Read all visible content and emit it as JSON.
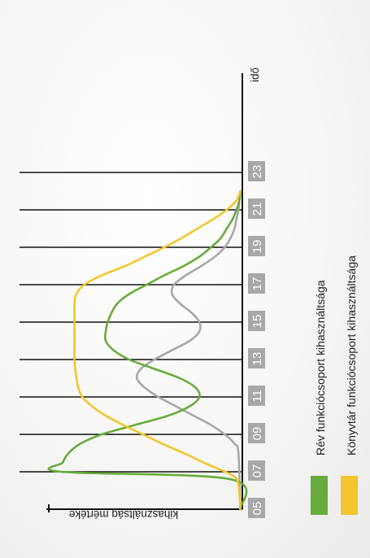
{
  "chart_data": {
    "type": "line",
    "orientation": "rotated-90-clockwise",
    "x_axis_label": "idő",
    "y_axis_label": "kihasználtság mértéke",
    "x_ticks": [
      "05",
      "07",
      "09",
      "11",
      "13",
      "15",
      "17",
      "19",
      "21",
      "23"
    ],
    "xlim": [
      5,
      23
    ],
    "ylim": [
      0,
      1
    ],
    "grid": "vertical lines at odd hours 07–23",
    "legend_position": "bottom",
    "series": [
      {
        "name": "Rév funkciócsoport kihasználtsága",
        "color": "#6aab3d",
        "x": [
          5,
          6.6,
          7,
          7.5,
          8,
          8.5,
          9,
          9.5,
          10,
          10.5,
          11,
          11.5,
          12,
          12.5,
          13,
          13.5,
          14,
          14.5,
          15,
          15.5,
          16,
          16.5,
          17,
          17.5,
          18,
          18.5,
          19,
          19.5,
          20,
          20.5,
          21,
          21.5,
          22
        ],
        "y": [
          0.01,
          0.06,
          0.93,
          0.92,
          0.89,
          0.83,
          0.72,
          0.55,
          0.38,
          0.27,
          0.22,
          0.24,
          0.32,
          0.45,
          0.58,
          0.66,
          0.7,
          0.7,
          0.69,
          0.67,
          0.64,
          0.58,
          0.49,
          0.4,
          0.3,
          0.22,
          0.16,
          0.11,
          0.08,
          0.05,
          0.03,
          0.015,
          0.01
        ]
      },
      {
        "name": "Könyvtár funkciócsoport kihasználtsága",
        "color": "#f2c62c",
        "x": [
          5,
          6.3,
          6.8,
          7.5,
          8,
          8.5,
          9,
          9.5,
          10,
          10.5,
          11,
          11.5,
          12,
          13,
          14,
          15,
          16,
          16.5,
          17,
          17.5,
          18,
          18.5,
          19,
          19.5,
          20,
          20.5,
          21,
          21.5,
          22
        ],
        "y": [
          0.01,
          0.02,
          0.05,
          0.2,
          0.3,
          0.41,
          0.51,
          0.61,
          0.7,
          0.77,
          0.82,
          0.84,
          0.85,
          0.86,
          0.86,
          0.86,
          0.86,
          0.85,
          0.81,
          0.72,
          0.6,
          0.5,
          0.4,
          0.31,
          0.23,
          0.15,
          0.08,
          0.03,
          0.01
        ]
      },
      {
        "name": "",
        "color": "#a8a8a8",
        "x": [
          5,
          8,
          8.5,
          9,
          9.5,
          10,
          10.5,
          11,
          11.5,
          12,
          12.5,
          13,
          13.5,
          14,
          14.5,
          15,
          15.5,
          16,
          16.5,
          17,
          17.5,
          18,
          18.5,
          19,
          19.5,
          20,
          20.5,
          21,
          21.5,
          22
        ],
        "y": [
          0.01,
          0.02,
          0.04,
          0.09,
          0.16,
          0.25,
          0.34,
          0.43,
          0.5,
          0.54,
          0.52,
          0.45,
          0.36,
          0.27,
          0.22,
          0.22,
          0.26,
          0.32,
          0.36,
          0.35,
          0.29,
          0.21,
          0.14,
          0.09,
          0.06,
          0.04,
          0.03,
          0.02,
          0.015,
          0.01
        ]
      }
    ]
  },
  "legend": [
    {
      "label": "Rév funkciócsoport kihasználtsága",
      "color": "#6aab3d"
    },
    {
      "label": "Könyvtár funkciócsoport kihasználtsága",
      "color": "#f2c62c"
    }
  ]
}
